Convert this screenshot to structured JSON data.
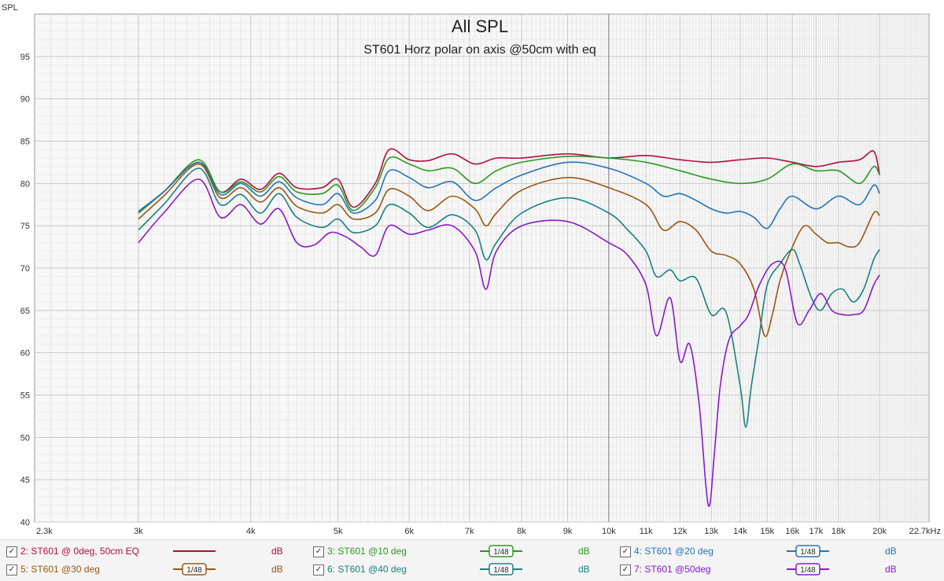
{
  "chart_data": {
    "type": "line",
    "title": "All SPL",
    "subtitle": "ST601 Horz polar  on axis @50cm with eq",
    "ylabel": "SPL",
    "xlabel": "",
    "x_scale": "log",
    "xlim": [
      2300,
      22700
    ],
    "ylim": [
      40,
      100
    ],
    "x_ticks": [
      {
        "v": 2300,
        "label": "2.3k"
      },
      {
        "v": 3000,
        "label": "3k"
      },
      {
        "v": 4000,
        "label": "4k"
      },
      {
        "v": 5000,
        "label": "5k"
      },
      {
        "v": 6000,
        "label": "6k"
      },
      {
        "v": 7000,
        "label": "7k"
      },
      {
        "v": 8000,
        "label": "8k"
      },
      {
        "v": 9000,
        "label": "9k"
      },
      {
        "v": 10000,
        "label": "10k"
      },
      {
        "v": 11000,
        "label": "11k"
      },
      {
        "v": 12000,
        "label": "12k"
      },
      {
        "v": 13000,
        "label": "13k"
      },
      {
        "v": 14000,
        "label": "14k"
      },
      {
        "v": 15000,
        "label": "15k"
      },
      {
        "v": 16000,
        "label": "16k"
      },
      {
        "v": 17000,
        "label": "17k"
      },
      {
        "v": 18000,
        "label": "18k"
      },
      {
        "v": 20000,
        "label": "20k"
      },
      {
        "v": 22700,
        "label": "22.7kHz"
      }
    ],
    "y_ticks": [
      40,
      45,
      50,
      55,
      60,
      65,
      70,
      75,
      80,
      85,
      90,
      95
    ],
    "grid": true,
    "legend_position": "bottom",
    "series": [
      {
        "name": "2: ST601 @ 0deg, 50cm EQ",
        "color": "#b0103c",
        "x": [
          3000,
          3200,
          3500,
          3700,
          3900,
          4100,
          4300,
          4500,
          4800,
          5000,
          5200,
          5500,
          5700,
          6000,
          6300,
          6700,
          7100,
          7500,
          8000,
          9000,
          10000,
          11000,
          12000,
          13000,
          14000,
          15000,
          16000,
          17000,
          18000,
          19000,
          19700,
          20000
        ],
        "y": [
          76.5,
          79,
          82.5,
          79,
          80.5,
          79.3,
          81.2,
          79.5,
          79.5,
          80.5,
          77.2,
          80,
          84,
          82.8,
          82.7,
          83.5,
          82.3,
          83,
          83,
          83.5,
          83,
          83.3,
          82.8,
          82.5,
          82.8,
          83,
          82.5,
          82,
          82.5,
          82.8,
          83.8,
          81
        ]
      },
      {
        "name": "3: ST601 @10 deg",
        "color": "#2a9a1e",
        "x": [
          3000,
          3200,
          3500,
          3700,
          3900,
          4100,
          4300,
          4500,
          4800,
          5000,
          5200,
          5500,
          5700,
          6000,
          6300,
          6700,
          7100,
          7500,
          8000,
          9000,
          10000,
          11000,
          12000,
          13000,
          14000,
          15000,
          16000,
          17000,
          18000,
          19000,
          19700,
          20000
        ],
        "y": [
          76.5,
          79,
          82.8,
          79,
          80.2,
          79,
          80.8,
          79,
          78.8,
          79.8,
          76.8,
          79.5,
          83,
          82.3,
          81.5,
          81.8,
          80,
          81.5,
          82.5,
          83.2,
          83,
          82.5,
          81.5,
          80.5,
          80,
          80.5,
          82.3,
          81.5,
          81.5,
          80,
          82,
          81
        ]
      },
      {
        "name": "4: ST601 @20 deg",
        "color": "#2474b8",
        "x": [
          3000,
          3200,
          3500,
          3700,
          3900,
          4100,
          4300,
          4500,
          4800,
          5000,
          5200,
          5500,
          5700,
          6000,
          6300,
          6700,
          7100,
          7500,
          8000,
          9000,
          10000,
          11000,
          11500,
          12000,
          12500,
          13000,
          13500,
          14000,
          14500,
          15000,
          15500,
          16000,
          17000,
          18000,
          19000,
          19700,
          20000
        ],
        "y": [
          76.7,
          79,
          82.5,
          78.7,
          80,
          78.5,
          80.2,
          78.3,
          77.5,
          78.8,
          76.5,
          78,
          81.5,
          80.7,
          79.5,
          80.2,
          78,
          79.5,
          81,
          82.5,
          81.8,
          80,
          78.5,
          78.8,
          78,
          77,
          76.5,
          76.7,
          76,
          74.7,
          77,
          78.5,
          77,
          78.5,
          77.5,
          79.8,
          78.8
        ]
      },
      {
        "name": "5: ST601 @30 deg",
        "color": "#9a5712",
        "x": [
          3000,
          3200,
          3500,
          3700,
          3900,
          4100,
          4300,
          4500,
          4800,
          5000,
          5200,
          5500,
          5700,
          6000,
          6300,
          6700,
          7100,
          7300,
          7500,
          8000,
          9000,
          10000,
          11000,
          11500,
          12000,
          12500,
          13000,
          13500,
          14000,
          14500,
          14900,
          15200,
          15500,
          16000,
          16500,
          17000,
          17500,
          18000,
          18500,
          19000,
          19700,
          20000
        ],
        "y": [
          75.8,
          78.5,
          82.3,
          78.3,
          79.5,
          77.8,
          79.5,
          77.3,
          76.5,
          77.5,
          75.8,
          76.5,
          79.3,
          78.5,
          76.8,
          78.5,
          77,
          75,
          76.5,
          79.2,
          80.7,
          79.5,
          77.5,
          74.5,
          75.5,
          74.5,
          72,
          71.5,
          70.5,
          67.5,
          62,
          64.5,
          68.5,
          72.5,
          75,
          74,
          73,
          73,
          72.5,
          73,
          76.5,
          76.2
        ]
      },
      {
        "name": "6: ST601 @40 deg",
        "color": "#1a8080",
        "x": [
          3000,
          3200,
          3500,
          3700,
          3900,
          4100,
          4300,
          4500,
          4800,
          5000,
          5200,
          5500,
          5700,
          6000,
          6300,
          6700,
          7100,
          7300,
          7500,
          8000,
          9000,
          10000,
          10500,
          11000,
          11300,
          11700,
          12000,
          12500,
          13000,
          13500,
          14000,
          14200,
          14400,
          14700,
          15000,
          15500,
          16000,
          16300,
          16800,
          17200,
          17700,
          18200,
          18700,
          19200,
          19700,
          20000
        ],
        "y": [
          74.5,
          77.5,
          81.8,
          77.5,
          78.7,
          76.5,
          78.8,
          76,
          74.8,
          75.8,
          74.2,
          75,
          77.5,
          76.5,
          74.8,
          76.3,
          74.5,
          71,
          73,
          76.5,
          78.3,
          76.5,
          74.5,
          72,
          69,
          69.8,
          68.5,
          68.8,
          64.5,
          64.8,
          56,
          51.2,
          56,
          62,
          68,
          70.5,
          72.2,
          70.5,
          66.5,
          65,
          67,
          67.5,
          66,
          67.5,
          71,
          72.2
        ]
      },
      {
        "name": "7: ST601 @50deg",
        "color": "#8a1ac8",
        "x": [
          3000,
          3200,
          3500,
          3700,
          3900,
          4100,
          4300,
          4500,
          4700,
          4900,
          5100,
          5300,
          5500,
          5700,
          6000,
          6300,
          6700,
          7100,
          7300,
          7500,
          8000,
          9000,
          10000,
          10500,
          11000,
          11300,
          11700,
          12000,
          12300,
          12600,
          12900,
          13100,
          13300,
          13600,
          14000,
          14300,
          14700,
          15200,
          15700,
          16200,
          16700,
          17200,
          17700,
          18200,
          18700,
          19200,
          19700,
          20000
        ],
        "y": [
          73,
          76.5,
          80.5,
          76,
          77.5,
          75.2,
          77,
          73,
          72.7,
          74.2,
          73.7,
          72.5,
          71.5,
          75,
          74,
          74.5,
          75,
          72,
          67.5,
          72,
          75,
          75.5,
          73,
          71.5,
          68,
          62,
          66.5,
          59,
          61,
          54,
          42,
          48,
          56,
          61.5,
          63.2,
          64.5,
          68,
          70.5,
          70,
          63.5,
          65,
          67,
          65,
          64.5,
          64.5,
          65,
          68,
          69.2
        ]
      }
    ]
  },
  "legend": [
    {
      "checked": "✓",
      "name": "2: ST601 @ 0deg, 50cm EQ",
      "smoothing": "",
      "unit": "dB",
      "color": "#b0103c"
    },
    {
      "checked": "✓",
      "name": "3: ST601 @10 deg",
      "smoothing": "1/48",
      "unit": "dB",
      "color": "#2a9a1e"
    },
    {
      "checked": "✓",
      "name": "4: ST601 @20 deg",
      "smoothing": "1/48",
      "unit": "dB",
      "color": "#2474b8"
    },
    {
      "checked": "✓",
      "name": "5: ST601 @30 deg",
      "smoothing": "1/48",
      "unit": "dB",
      "color": "#9a5712"
    },
    {
      "checked": "✓",
      "name": "6: ST601 @40 deg",
      "smoothing": "1/48",
      "unit": "dB",
      "color": "#1a8080"
    },
    {
      "checked": "✓",
      "name": "7: ST601 @50deg",
      "smoothing": "1/48",
      "unit": "dB",
      "color": "#8a1ac8"
    }
  ]
}
